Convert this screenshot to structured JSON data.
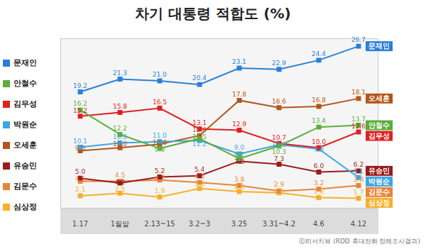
{
  "chart_data": {
    "type": "line",
    "title": "차기 대통령 적합도 (%)",
    "source": "ⓒ리서치뷰 (RDD 휴대전화 정례조사결과)",
    "categories": [
      "1.17",
      "1월말",
      "2.13~15",
      "3.2~3",
      "3.25",
      "3.31~4.2",
      "4.6",
      "4.12"
    ],
    "series": [
      {
        "name": "문재인",
        "color": "#2a7fd6",
        "values": [
          19.2,
          21.3,
          21.0,
          20.4,
          23.1,
          22.9,
          24.4,
          26.7
        ],
        "value_labels": [
          "19.2",
          "21.3",
          "21.0",
          "20.4",
          "23.1",
          "22.9",
          "24.4",
          "26.7"
        ]
      },
      {
        "name": "안철수",
        "color": "#5aae3a",
        "values": [
          16.2,
          12.2,
          9.9,
          11.5,
          8.2,
          10.3,
          13.4,
          13.7
        ],
        "value_labels": [
          "16.2",
          "12.2",
          "9.9",
          "11.5",
          "8.2",
          "10.3",
          "13.4",
          "13.7"
        ]
      },
      {
        "name": "김무성",
        "color": "#e02020",
        "values": [
          15.2,
          15.8,
          16.5,
          13.1,
          12.9,
          10.7,
          10.0,
          12.6
        ],
        "value_labels": [
          "15.2",
          "15.8",
          "16.5",
          "13.1",
          "12.9",
          "10.7",
          "10.0",
          "12.6"
        ]
      },
      {
        "name": "박원순",
        "color": "#3ea6e0",
        "values": [
          10.1,
          10.8,
          11.0,
          11.2,
          9.0,
          10.5,
          9.8,
          5.1
        ],
        "value_labels": [
          "10.1",
          "10.8",
          "11.0",
          "11.2",
          "9.0",
          "10.5",
          "9.8",
          "5.1"
        ]
      },
      {
        "name": "오세훈",
        "color": "#b3561b",
        "values": [
          9.5,
          10.0,
          10.6,
          12.0,
          17.8,
          16.6,
          16.8,
          18.1
        ],
        "value_labels": [
          "9.5",
          "10.0",
          "10.6",
          "12.0",
          "17.8",
          "16.6",
          "16.8",
          "18.1"
        ]
      },
      {
        "name": "유승민",
        "color": "#9b1b1b",
        "values": [
          5.0,
          4.2,
          5.2,
          5.4,
          7.8,
          7.3,
          6.0,
          6.2
        ],
        "value_labels": [
          "5.0",
          "4.2",
          "5.2",
          "5.4",
          "7.8",
          "7.3",
          "6.0",
          "6.2"
        ]
      },
      {
        "name": "김문수",
        "color": "#e8843a",
        "values": [
          4.5,
          4.5,
          4.7,
          4.3,
          3.8,
          2.9,
          3.2,
          3.8
        ],
        "value_labels": [
          "4.5",
          "4.5",
          "4.7",
          "4.3",
          "3.8",
          "2.9",
          "3.2",
          "3.8"
        ]
      },
      {
        "name": "심상정",
        "color": "#f6b02b",
        "values": [
          2.1,
          2.5,
          1.9,
          3.3,
          2.8,
          2.6,
          1.8,
          1.7
        ],
        "value_labels": [
          "2.1",
          "2.5",
          "1.9",
          "3.3",
          "2.8",
          "2.6",
          "1.8",
          "1.7"
        ]
      }
    ],
    "ylim": [
      0,
      28
    ],
    "grid": false,
    "legend": "left",
    "data_labels": true,
    "tick_labels": "x",
    "marker": "square"
  }
}
